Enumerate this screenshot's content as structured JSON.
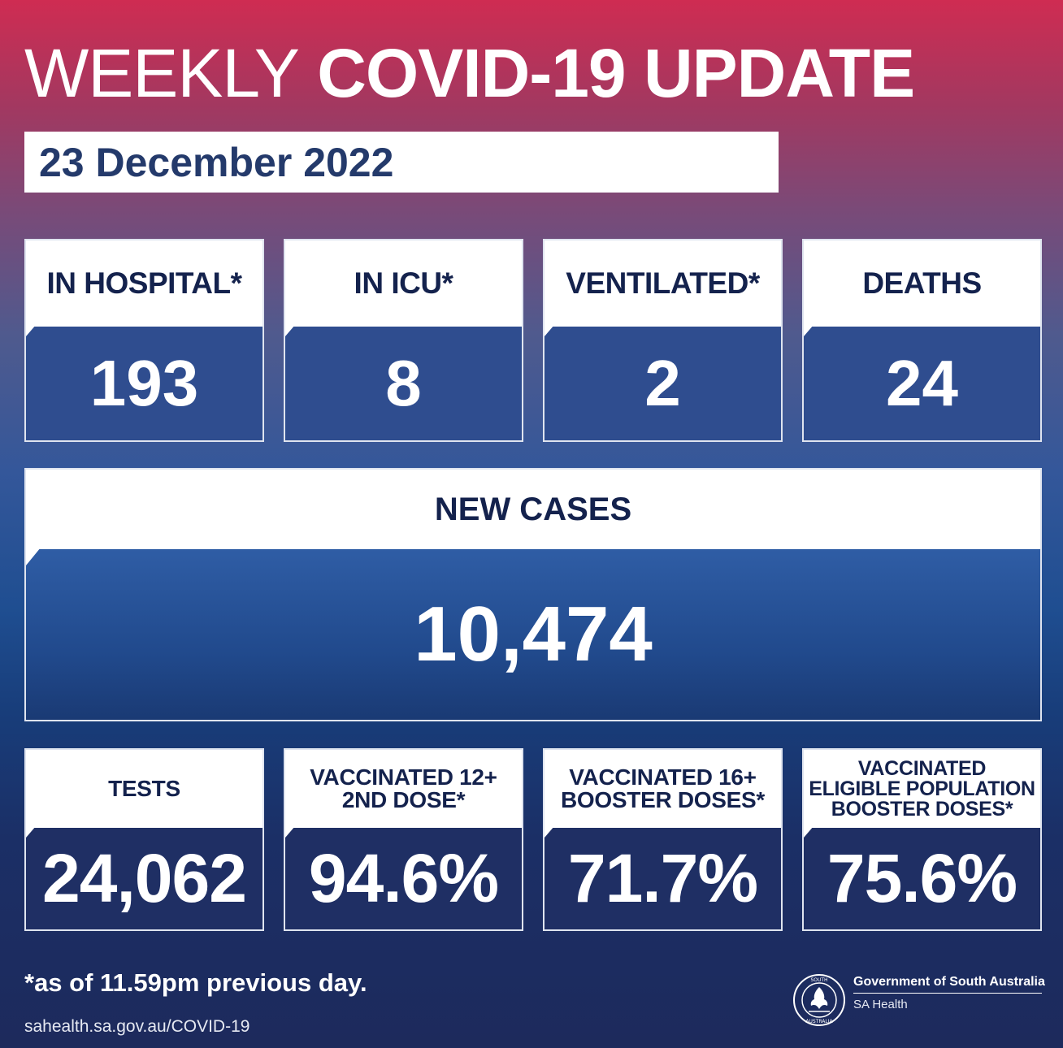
{
  "header": {
    "title_light": "WEEKLY",
    "title_bold": "COVID-19 UPDATE",
    "date": "23 December 2022"
  },
  "stats": {
    "hospital": {
      "label": "IN HOSPITAL*",
      "value": "193"
    },
    "icu": {
      "label": "IN ICU*",
      "value": "8"
    },
    "ventilated": {
      "label": "VENTILATED*",
      "value": "2"
    },
    "deaths": {
      "label": "DEATHS",
      "value": "24"
    }
  },
  "new_cases": {
    "label": "NEW CASES",
    "value": "10,474"
  },
  "bottom": {
    "tests": {
      "label_lines": [
        "TESTS"
      ],
      "value": "24,062"
    },
    "vacc12": {
      "label_lines": [
        "VACCINATED 12+",
        "2ND DOSE*"
      ],
      "value": "94.6%"
    },
    "vacc16": {
      "label_lines": [
        "VACCINATED 16+",
        "BOOSTER DOSES*"
      ],
      "value": "71.7%"
    },
    "eligible": {
      "label_lines": [
        "VACCINATED",
        "ELIGIBLE POPULATION",
        "BOOSTER DOSES*"
      ],
      "value": "75.6%"
    }
  },
  "footer": {
    "footnote": "*as of 11.59pm previous day.",
    "url": "sahealth.sa.gov.au/COVID-19",
    "government": "Government of South Australia",
    "agency": "SA Health"
  }
}
